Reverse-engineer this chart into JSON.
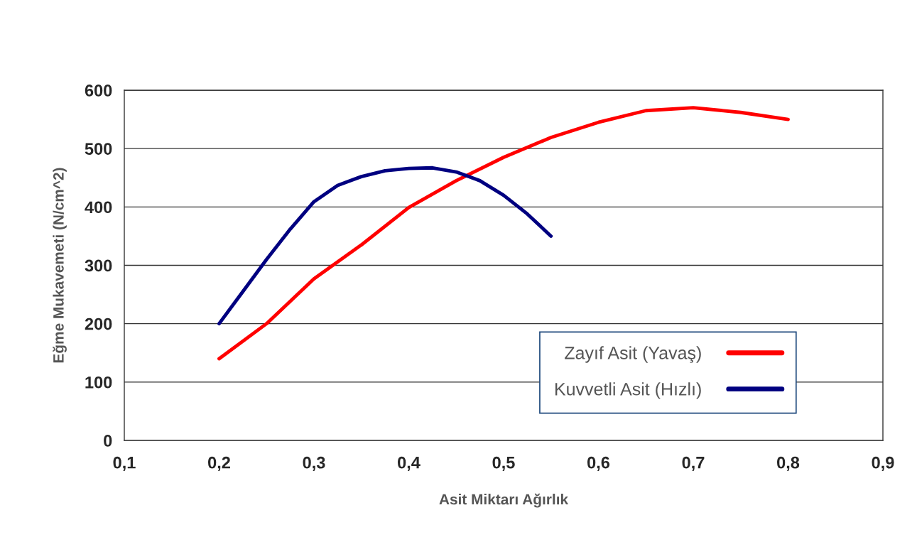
{
  "chart_data": {
    "type": "line",
    "xlabel": "Asit Miktarı Ağırlık",
    "ylabel": "Eğme Mukavemeti (N/cm^2)",
    "series": [
      {
        "name": "Zayıf Asit (Yavaş)",
        "color": "#ff0000",
        "x": [
          0.2,
          0.25,
          0.3,
          0.35,
          0.4,
          0.45,
          0.5,
          0.55,
          0.6,
          0.65,
          0.7,
          0.75,
          0.8
        ],
        "values": [
          140,
          200,
          277,
          335,
          399,
          445,
          485,
          519,
          545,
          565,
          570,
          562,
          550
        ]
      },
      {
        "name": "Kuvvetli Asit (Hızlı)",
        "color": "#000080",
        "x": [
          0.2,
          0.225,
          0.25,
          0.275,
          0.3,
          0.325,
          0.35,
          0.375,
          0.4,
          0.425,
          0.45,
          0.475,
          0.5,
          0.525,
          0.55
        ],
        "values": [
          200,
          255,
          310,
          362,
          409,
          437,
          452,
          462,
          466,
          467,
          460,
          445,
          420,
          388,
          350
        ]
      }
    ],
    "xlim": [
      0.1,
      0.9
    ],
    "xticks": [
      {
        "value": 0.1,
        "label": "0,1"
      },
      {
        "value": 0.2,
        "label": "0,2"
      },
      {
        "value": 0.3,
        "label": "0,3"
      },
      {
        "value": 0.4,
        "label": "0,4"
      },
      {
        "value": 0.5,
        "label": "0,5"
      },
      {
        "value": 0.6,
        "label": "0,6"
      },
      {
        "value": 0.7,
        "label": "0,7"
      },
      {
        "value": 0.8,
        "label": "0,8"
      },
      {
        "value": 0.9,
        "label": "0,9"
      }
    ],
    "ylim": [
      0,
      600
    ],
    "yticks": [
      0,
      100,
      200,
      300,
      400,
      500,
      600
    ],
    "grid": "y",
    "legend": "bottom right",
    "marker": "none",
    "line_style": "solid"
  }
}
